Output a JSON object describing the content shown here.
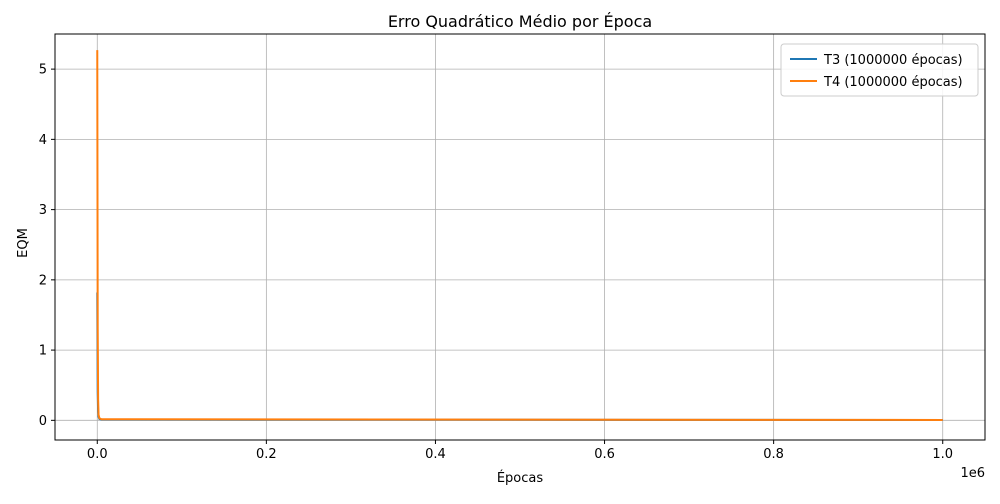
{
  "chart_data": {
    "type": "line",
    "title": "Erro Quadrático Médio por Época",
    "xlabel": "Épocas",
    "ylabel": "EQM",
    "x_offset_label": "1e6",
    "xlim": [
      -50000,
      1050000
    ],
    "ylim": [
      -0.28,
      5.5
    ],
    "x_ticks": [
      0,
      200000,
      400000,
      600000,
      800000,
      1000000
    ],
    "x_tick_labels": [
      "0.0",
      "0.2",
      "0.4",
      "0.6",
      "0.8",
      "1.0"
    ],
    "y_ticks": [
      0,
      1,
      2,
      3,
      4,
      5
    ],
    "y_tick_labels": [
      "0",
      "1",
      "2",
      "3",
      "4",
      "5"
    ],
    "grid": true,
    "legend_position": "top-right",
    "series": [
      {
        "name": "T3 (1000000 épocas)",
        "color": "#1f77b4",
        "x": [
          0,
          500,
          1000,
          1500,
          2500,
          5000,
          1000000
        ],
        "values": [
          1.82,
          0.4,
          0.12,
          0.05,
          0.02,
          0.01,
          0.005
        ]
      },
      {
        "name": "T4 (1000000 épocas)",
        "color": "#ff7f0e",
        "x": [
          0,
          500,
          1000,
          1500,
          2500,
          5000,
          1000000
        ],
        "values": [
          5.27,
          1.3,
          0.3,
          0.08,
          0.03,
          0.015,
          0.005
        ]
      }
    ]
  }
}
